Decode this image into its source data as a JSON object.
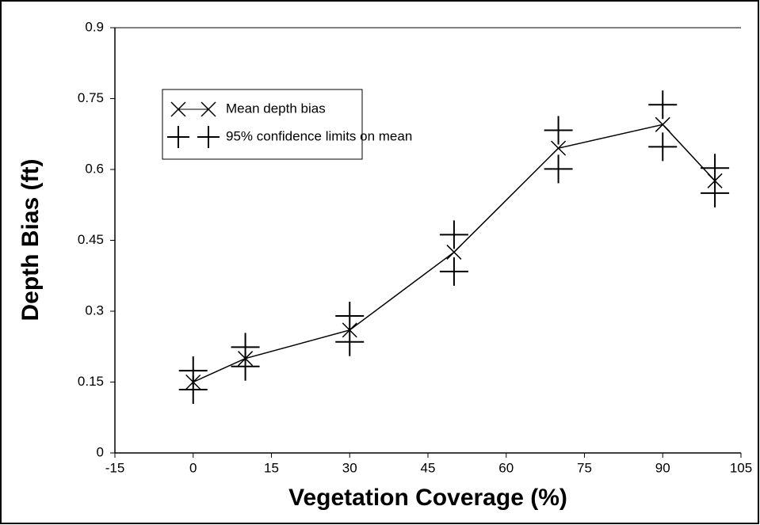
{
  "chart_data": {
    "type": "line",
    "xlabel": "Vegetation Coverage (%)",
    "ylabel": "Depth Bias (ft)",
    "x": [
      0,
      10,
      30,
      50,
      70,
      90,
      100
    ],
    "series": [
      {
        "name": "Mean depth bias",
        "color": "#000000",
        "values": [
          0.15,
          0.2,
          0.26,
          0.425,
          0.645,
          0.695,
          0.576
        ]
      }
    ],
    "limits": {
      "name": "95% confidence limits on mean",
      "color": "#000000",
      "upper": [
        0.174,
        0.224,
        0.29,
        0.462,
        0.683,
        0.737,
        0.603
      ],
      "lower": [
        0.134,
        0.183,
        0.235,
        0.384,
        0.601,
        0.648,
        0.55
      ]
    },
    "xlim": [
      -15,
      105
    ],
    "xticks": [
      -15,
      0,
      15,
      30,
      45,
      60,
      75,
      90,
      105
    ],
    "ylim": [
      0,
      0.9
    ],
    "yticks": [
      0,
      0.15,
      0.3,
      0.45,
      0.6,
      0.75,
      0.9
    ],
    "grid": false,
    "legend": "upper left"
  }
}
